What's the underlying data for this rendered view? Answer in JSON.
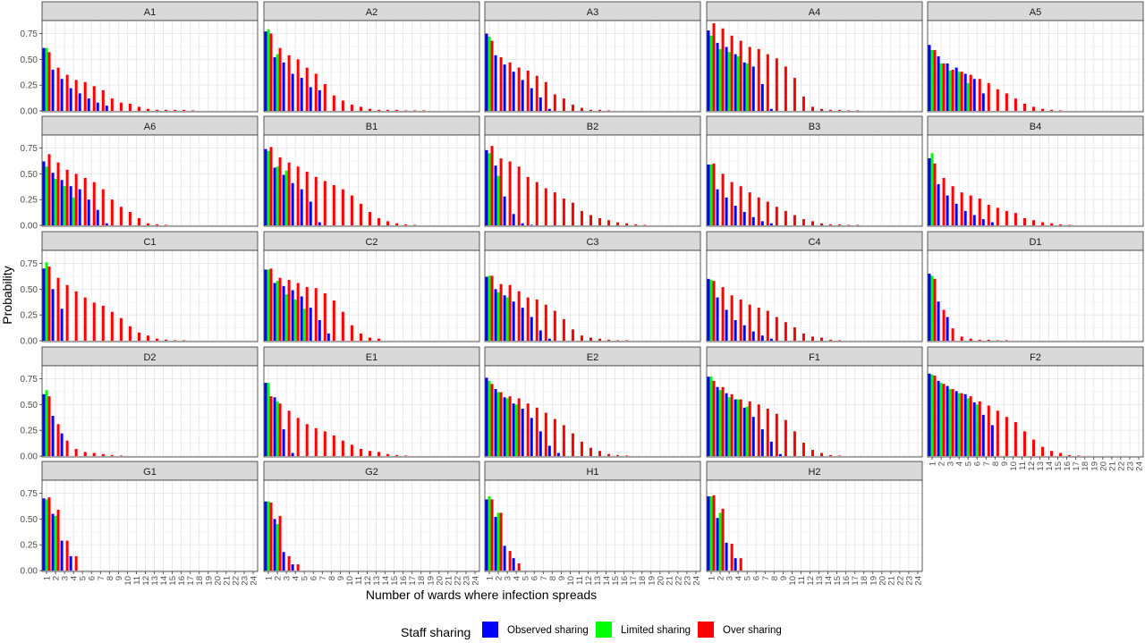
{
  "chart_data": {
    "type": "bar",
    "ylabel": "Probability",
    "xlabel": "Number of wards where infection spreads",
    "ylim": [
      0,
      0.85
    ],
    "yticks": [
      "0.00",
      "0.25",
      "0.50",
      "0.75"
    ],
    "x": [
      "1",
      "2",
      "3",
      "4",
      "5",
      "6",
      "7",
      "8",
      "9",
      "10",
      "11",
      "12",
      "13",
      "14",
      "15",
      "16",
      "17",
      "18",
      "19",
      "20",
      "21",
      "22",
      "23",
      "24"
    ],
    "legend": {
      "title": "Staff sharing",
      "position": "bottom",
      "items": [
        {
          "name": "Observed sharing",
          "color": "#0000ff"
        },
        {
          "name": "Limited sharing",
          "color": "#00ff00"
        },
        {
          "name": "Over sharing",
          "color": "#ff0000"
        }
      ]
    },
    "panels": [
      {
        "name": "A1",
        "observed": [
          0.61,
          0.4,
          0.31,
          0.22,
          0.17,
          0.12,
          0.08,
          0.05
        ],
        "limited": [
          0.61
        ],
        "over": [
          0.57,
          0.42,
          0.35,
          0.3,
          0.28,
          0.24,
          0.2,
          0.12,
          0.08,
          0.07,
          0.04,
          0.02,
          0.01,
          0.01,
          0.01,
          0.01,
          0.005
        ]
      },
      {
        "name": "A2",
        "observed": [
          0.77,
          0.52,
          0.47,
          0.36,
          0.32,
          0.23,
          0.2
        ],
        "limited": [
          0.79,
          0.55
        ],
        "over": [
          0.75,
          0.61,
          0.54,
          0.5,
          0.42,
          0.36,
          0.26,
          0.15,
          0.1,
          0.06,
          0.04,
          0.02,
          0.01,
          0.01,
          0.01,
          0.005,
          0.005,
          0.005
        ]
      },
      {
        "name": "A3",
        "observed": [
          0.75,
          0.54,
          0.45,
          0.38,
          0.3,
          0.22,
          0.13,
          0.02
        ],
        "limited": [
          0.72
        ],
        "over": [
          0.68,
          0.52,
          0.47,
          0.42,
          0.39,
          0.34,
          0.28,
          0.16,
          0.12,
          0.06,
          0.03,
          0.01,
          0.01,
          0.005
        ]
      },
      {
        "name": "A4",
        "observed": [
          0.78,
          0.66,
          0.62,
          0.55,
          0.47,
          0.43,
          0.26,
          0.02
        ],
        "limited": [
          0.73,
          0.6,
          0.57,
          0.53,
          0.46
        ],
        "over": [
          0.85,
          0.8,
          0.73,
          0.68,
          0.62,
          0.6,
          0.55,
          0.51,
          0.43,
          0.32,
          0.14,
          0.04,
          0.02,
          0.01,
          0.01,
          0.005,
          0.005
        ]
      },
      {
        "name": "A5",
        "observed": [
          0.64,
          0.53,
          0.46,
          0.42,
          0.36,
          0.31,
          0.17
        ],
        "limited": [
          0.59,
          0.46,
          0.39,
          0.38,
          0.27
        ],
        "over": [
          0.59,
          0.46,
          0.4,
          0.38,
          0.35,
          0.31,
          0.27,
          0.21,
          0.17,
          0.12,
          0.07,
          0.04,
          0.02,
          0.01,
          0.005
        ]
      },
      {
        "name": "A6",
        "observed": [
          0.62,
          0.51,
          0.44,
          0.38,
          0.35,
          0.25,
          0.15,
          0.02
        ],
        "limited": [
          0.57,
          0.45,
          0.38,
          0.27
        ],
        "over": [
          0.69,
          0.61,
          0.54,
          0.5,
          0.46,
          0.42,
          0.35,
          0.25,
          0.18,
          0.13,
          0.07,
          0.02,
          0.01,
          0.005
        ]
      },
      {
        "name": "B1",
        "observed": [
          0.74,
          0.56,
          0.49,
          0.41,
          0.35,
          0.23,
          0.03
        ],
        "limited": [
          0.72,
          0.57,
          0.53
        ],
        "over": [
          0.76,
          0.66,
          0.61,
          0.57,
          0.52,
          0.47,
          0.43,
          0.39,
          0.35,
          0.29,
          0.21,
          0.13,
          0.07,
          0.04,
          0.02,
          0.01,
          0.005
        ]
      },
      {
        "name": "B2",
        "observed": [
          0.73,
          0.58,
          0.28,
          0.11,
          0.02,
          0.005
        ],
        "limited": [
          0.7,
          0.48
        ],
        "over": [
          0.77,
          0.65,
          0.62,
          0.57,
          0.47,
          0.42,
          0.36,
          0.32,
          0.26,
          0.22,
          0.14,
          0.1,
          0.07,
          0.05,
          0.03,
          0.02,
          0.01,
          0.005
        ]
      },
      {
        "name": "B3",
        "observed": [
          0.59,
          0.35,
          0.27,
          0.19,
          0.13,
          0.08,
          0.04,
          0.02
        ],
        "limited": [
          0.59
        ],
        "over": [
          0.6,
          0.5,
          0.42,
          0.38,
          0.32,
          0.27,
          0.23,
          0.18,
          0.14,
          0.1,
          0.06,
          0.04,
          0.02,
          0.01,
          0.01,
          0.005,
          0.005
        ]
      },
      {
        "name": "B4",
        "observed": [
          0.65,
          0.4,
          0.29,
          0.21,
          0.14,
          0.1,
          0.06,
          0.03
        ],
        "limited": [
          0.7
        ],
        "over": [
          0.6,
          0.46,
          0.38,
          0.32,
          0.29,
          0.26,
          0.2,
          0.17,
          0.14,
          0.12,
          0.07,
          0.05,
          0.03,
          0.02,
          0.01,
          0.005
        ]
      },
      {
        "name": "C1",
        "observed": [
          0.7,
          0.5,
          0.31
        ],
        "limited": [
          0.76
        ],
        "over": [
          0.72,
          0.61,
          0.54,
          0.48,
          0.42,
          0.37,
          0.34,
          0.28,
          0.22,
          0.14,
          0.08,
          0.05,
          0.02,
          0.01,
          0.005,
          0.005
        ]
      },
      {
        "name": "C2",
        "observed": [
          0.69,
          0.56,
          0.53,
          0.49,
          0.43,
          0.32,
          0.2,
          0.07
        ],
        "limited": [
          0.69,
          0.58,
          0.45,
          0.4,
          0.31
        ],
        "over": [
          0.7,
          0.61,
          0.59,
          0.56,
          0.52,
          0.51,
          0.46,
          0.39,
          0.28,
          0.15,
          0.07,
          0.03,
          0.02
        ]
      },
      {
        "name": "C3",
        "observed": [
          0.62,
          0.5,
          0.44,
          0.38,
          0.32,
          0.23,
          0.1,
          0.02
        ],
        "limited": [
          0.63,
          0.47,
          0.42
        ],
        "over": [
          0.63,
          0.55,
          0.54,
          0.48,
          0.42,
          0.4,
          0.35,
          0.29,
          0.21,
          0.11,
          0.05,
          0.03,
          0.02,
          0.01,
          0.005,
          0.005
        ]
      },
      {
        "name": "C4",
        "observed": [
          0.6,
          0.42,
          0.3,
          0.2,
          0.15,
          0.09,
          0.05,
          0.02
        ],
        "limited": [
          0.59
        ],
        "over": [
          0.58,
          0.52,
          0.44,
          0.4,
          0.35,
          0.32,
          0.29,
          0.23,
          0.18,
          0.13,
          0.07,
          0.04,
          0.03,
          0.01,
          0.005
        ]
      },
      {
        "name": "D1",
        "observed": [
          0.65,
          0.38,
          0.23
        ],
        "limited": [
          0.63
        ],
        "over": [
          0.6,
          0.3,
          0.12,
          0.04,
          0.02,
          0.01,
          0.01,
          0.005,
          0.005
        ]
      },
      {
        "name": "D2",
        "observed": [
          0.6,
          0.39,
          0.22
        ],
        "limited": [
          0.64
        ],
        "over": [
          0.58,
          0.31,
          0.15,
          0.07,
          0.04,
          0.03,
          0.02,
          0.01,
          0.005
        ]
      },
      {
        "name": "E1",
        "observed": [
          0.71,
          0.57,
          0.26,
          0.03
        ],
        "limited": [
          0.71,
          0.53
        ],
        "over": [
          0.58,
          0.51,
          0.44,
          0.37,
          0.31,
          0.27,
          0.24,
          0.2,
          0.15,
          0.11,
          0.07,
          0.05,
          0.04,
          0.02,
          0.01,
          0.005
        ]
      },
      {
        "name": "E2",
        "observed": [
          0.76,
          0.65,
          0.57,
          0.51,
          0.46,
          0.37,
          0.24,
          0.1,
          0.03
        ],
        "limited": [
          0.73,
          0.62,
          0.56,
          0.5
        ],
        "over": [
          0.7,
          0.62,
          0.58,
          0.56,
          0.51,
          0.47,
          0.42,
          0.36,
          0.3,
          0.22,
          0.14,
          0.08,
          0.05,
          0.02,
          0.01,
          0.005
        ]
      },
      {
        "name": "F1",
        "observed": [
          0.77,
          0.67,
          0.61,
          0.55,
          0.47,
          0.38,
          0.26,
          0.14,
          0.02
        ],
        "limited": [
          0.77,
          0.64,
          0.57,
          0.55,
          0.48
        ],
        "over": [
          0.73,
          0.67,
          0.6,
          0.55,
          0.53,
          0.5,
          0.46,
          0.41,
          0.35,
          0.24,
          0.13,
          0.06,
          0.03,
          0.01,
          0.005
        ]
      },
      {
        "name": "F2",
        "observed": [
          0.8,
          0.73,
          0.68,
          0.63,
          0.6,
          0.52,
          0.4,
          0.3
        ],
        "limited": [
          0.79,
          0.71,
          0.65,
          0.61,
          0.56,
          0.5
        ],
        "over": [
          0.78,
          0.7,
          0.65,
          0.61,
          0.58,
          0.53,
          0.49,
          0.44,
          0.38,
          0.33,
          0.24,
          0.16,
          0.09,
          0.05,
          0.03,
          0.01,
          0.005
        ]
      },
      {
        "name": "G1",
        "observed": [
          0.7,
          0.55,
          0.29,
          0.14
        ],
        "limited": [
          0.69,
          0.53
        ],
        "over": [
          0.71,
          0.59,
          0.29,
          0.14
        ]
      },
      {
        "name": "G2",
        "observed": [
          0.67,
          0.5,
          0.18,
          0.06
        ],
        "limited": [
          0.67,
          0.45
        ],
        "over": [
          0.66,
          0.53,
          0.14,
          0.06
        ]
      },
      {
        "name": "H1",
        "observed": [
          0.69,
          0.52,
          0.24,
          0.12
        ],
        "limited": [
          0.72,
          0.56
        ],
        "over": [
          0.69,
          0.56,
          0.19,
          0.07
        ]
      },
      {
        "name": "H2",
        "observed": [
          0.72,
          0.51,
          0.27,
          0.12
        ],
        "limited": [
          0.72,
          0.56
        ],
        "over": [
          0.73,
          0.6,
          0.26,
          0.12
        ]
      }
    ]
  }
}
